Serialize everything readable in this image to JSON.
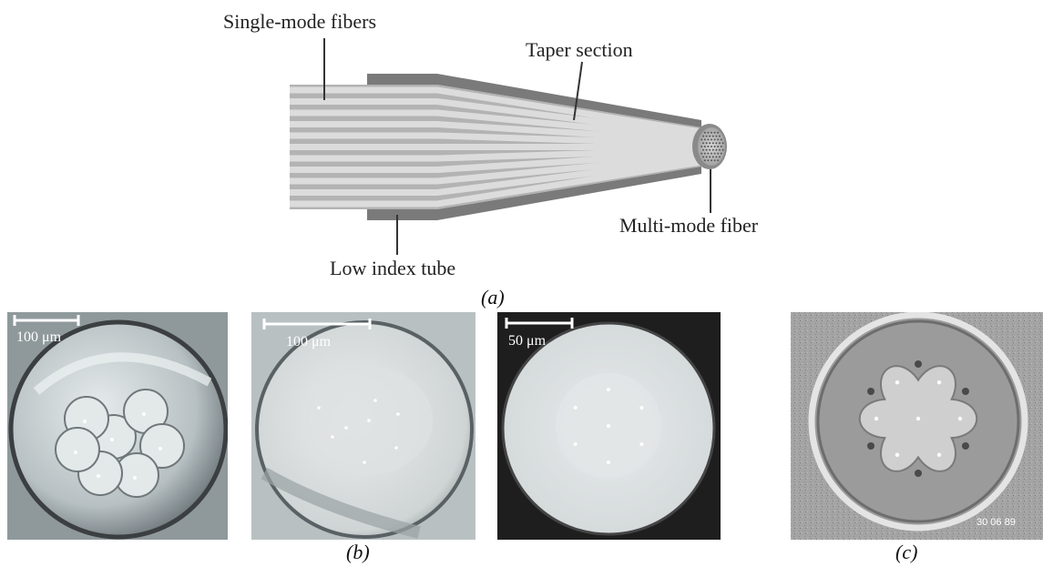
{
  "diagram": {
    "labels": {
      "single_mode": "Single-mode fibers",
      "taper": "Taper section",
      "multi_mode": "Multi-mode fiber",
      "low_index": "Low index tube"
    },
    "caption_a": "(a)"
  },
  "photos": {
    "b1": {
      "scale_label": "100 μm"
    },
    "b2": {
      "scale_label": "100 μm"
    },
    "b3": {
      "scale_label": "50 μm"
    },
    "c": {
      "stamp": "30 06 89"
    }
  },
  "captions": {
    "b": "(b)",
    "c": "(c)"
  },
  "colors": {
    "fiber": "#dcdcdc",
    "tube": "#7f7f7f",
    "taper_fill": "#bdbdbd",
    "photo_bg_b1": "#9aa3a6",
    "photo_bg_b2": "#c9cfd0",
    "photo_bg_b3": "#2a2a2a",
    "photo_bg_c": "#9a9a9a"
  }
}
